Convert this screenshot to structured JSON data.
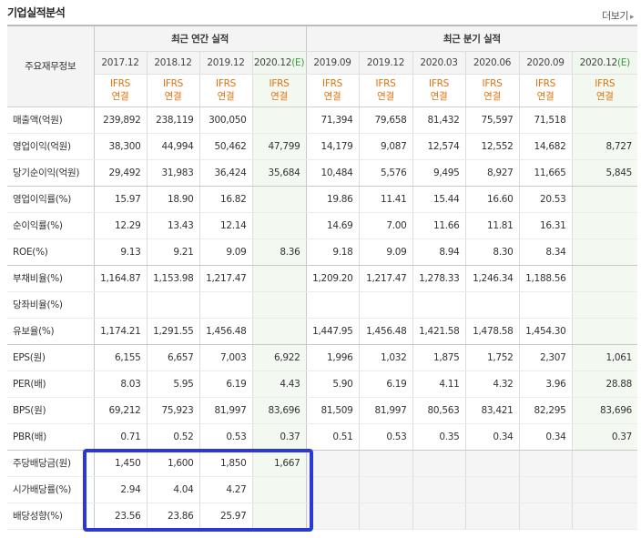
{
  "header": {
    "title": "기업실적분석",
    "more_label": "더보기"
  },
  "table": {
    "corner_label": "주요재무정보",
    "group_annual": "최근 연간 실적",
    "group_quarter": "최근 분기 실적",
    "periods": [
      "2017.12",
      "2018.12",
      "2019.12",
      "2020.12",
      "2019.09",
      "2019.12",
      "2020.03",
      "2020.06",
      "2020.09",
      "2020.12"
    ],
    "estimate_mark": "(E)",
    "ifrs_top": "IFRS",
    "ifrs_bottom": "연결",
    "rows": [
      {
        "label": "매출액(억원)",
        "values": [
          "239,892",
          "238,119",
          "300,050",
          "",
          "71,394",
          "79,658",
          "81,432",
          "75,597",
          "71,518",
          ""
        ]
      },
      {
        "label": "영업이익(억원)",
        "values": [
          "38,300",
          "44,994",
          "50,462",
          "47,799",
          "14,179",
          "9,087",
          "12,574",
          "12,552",
          "14,682",
          "8,727"
        ]
      },
      {
        "label": "당기순이익(억원)",
        "values": [
          "29,492",
          "31,983",
          "36,424",
          "35,684",
          "10,484",
          "5,576",
          "9,495",
          "8,927",
          "11,665",
          "5,845"
        ]
      },
      {
        "label": "영업이익률(%)",
        "values": [
          "15.97",
          "18.90",
          "16.82",
          "",
          "19.86",
          "11.41",
          "15.44",
          "16.60",
          "20.53",
          ""
        ]
      },
      {
        "label": "순이익률(%)",
        "values": [
          "12.29",
          "13.43",
          "12.14",
          "",
          "14.69",
          "7.00",
          "11.66",
          "11.81",
          "16.31",
          ""
        ]
      },
      {
        "label": "ROE(%)",
        "values": [
          "9.13",
          "9.21",
          "9.09",
          "8.36",
          "9.18",
          "9.09",
          "8.94",
          "8.30",
          "8.34",
          ""
        ]
      },
      {
        "label": "부채비율(%)",
        "values": [
          "1,164.87",
          "1,153.98",
          "1,217.47",
          "",
          "1,209.20",
          "1,217.47",
          "1,278.33",
          "1,246.34",
          "1,188.56",
          ""
        ]
      },
      {
        "label": "당좌비율(%)",
        "values": [
          "",
          "",
          "",
          "",
          "",
          "",
          "",
          "",
          "",
          ""
        ]
      },
      {
        "label": "유보율(%)",
        "values": [
          "1,174.21",
          "1,291.55",
          "1,456.48",
          "",
          "1,447.95",
          "1,456.48",
          "1,421.58",
          "1,478.58",
          "1,454.30",
          ""
        ]
      },
      {
        "label": "EPS(원)",
        "values": [
          "6,155",
          "6,657",
          "7,003",
          "6,922",
          "1,996",
          "1,032",
          "1,875",
          "1,752",
          "2,307",
          "1,061"
        ]
      },
      {
        "label": "PER(배)",
        "values": [
          "8.03",
          "5.95",
          "6.19",
          "4.43",
          "5.90",
          "6.19",
          "4.11",
          "4.32",
          "3.96",
          "28.88"
        ]
      },
      {
        "label": "BPS(원)",
        "values": [
          "69,212",
          "75,923",
          "81,997",
          "83,696",
          "81,509",
          "81,997",
          "80,563",
          "83,421",
          "82,295",
          "83,696"
        ]
      },
      {
        "label": "PBR(배)",
        "values": [
          "0.71",
          "0.52",
          "0.53",
          "0.37",
          "0.51",
          "0.53",
          "0.35",
          "0.34",
          "0.34",
          "0.37"
        ]
      },
      {
        "label": "주당배당금(원)",
        "values": [
          "1,450",
          "1,600",
          "1,850",
          "1,667",
          "",
          "",
          "",
          "",
          "",
          ""
        ]
      },
      {
        "label": "시가배당률(%)",
        "values": [
          "2.94",
          "4.04",
          "4.27",
          "",
          "",
          "",
          "",
          "",
          "",
          ""
        ]
      },
      {
        "label": "배당성향(%)",
        "values": [
          "23.56",
          "23.86",
          "25.97",
          "",
          "",
          "",
          "",
          "",
          "",
          ""
        ]
      }
    ]
  },
  "highlight_color": "#2a39d6"
}
